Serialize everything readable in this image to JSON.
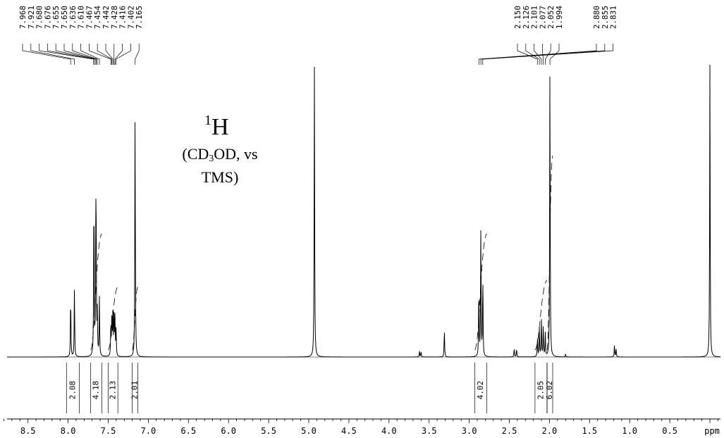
{
  "chart_data": {
    "type": "line",
    "title": "1H",
    "nucleus_superscript": "1",
    "nucleus_symbol": "H",
    "subtitle": "(CD3OD, vs TMS)",
    "subtitle_parts": [
      "(CD",
      "3",
      "OD, vs",
      "TMS)"
    ],
    "xlabel": "ppm",
    "xlim": [
      8.95,
      -0.3
    ],
    "x_direction": "reversed",
    "x_ticks": [
      "8.5",
      "8.0",
      "7.5",
      "7.0",
      "6.5",
      "6.0",
      "5.5",
      "5.0",
      "4.5",
      "4.0",
      "3.5",
      "3.0",
      "2.5",
      "2.0",
      "1.5",
      "1.0",
      "0.5"
    ],
    "x_tick_values": [
      8.5,
      8.0,
      7.5,
      7.0,
      6.5,
      6.0,
      5.5,
      5.0,
      4.5,
      4.0,
      3.5,
      3.0,
      2.5,
      2.0,
      1.5,
      1.0,
      0.5
    ],
    "y_units": "relative intensity",
    "peaks": [
      {
        "ppm": 7.968,
        "height": 0.22
      },
      {
        "ppm": 7.921,
        "height": 0.24
      },
      {
        "ppm": 7.68,
        "height": 0.31
      },
      {
        "ppm": 7.676,
        "height": 0.3
      },
      {
        "ppm": 7.655,
        "height": 0.41
      },
      {
        "ppm": 7.65,
        "height": 0.34
      },
      {
        "ppm": 7.636,
        "height": 0.14
      },
      {
        "ppm": 7.61,
        "height": 0.2
      },
      {
        "ppm": 7.467,
        "height": 0.12
      },
      {
        "ppm": 7.454,
        "height": 0.16
      },
      {
        "ppm": 7.442,
        "height": 0.14
      },
      {
        "ppm": 7.428,
        "height": 0.16
      },
      {
        "ppm": 7.416,
        "height": 0.13
      },
      {
        "ppm": 7.402,
        "height": 0.1
      },
      {
        "ppm": 7.165,
        "height": 0.88
      },
      {
        "ppm": 4.93,
        "height": 1.0
      },
      {
        "ppm": 3.62,
        "height": 0.02
      },
      {
        "ppm": 3.6,
        "height": 0.02
      },
      {
        "ppm": 3.31,
        "height": 0.1
      },
      {
        "ppm": 2.88,
        "height": 0.25
      },
      {
        "ppm": 2.855,
        "height": 0.45
      },
      {
        "ppm": 2.831,
        "height": 0.28
      },
      {
        "ppm": 2.44,
        "height": 0.03
      },
      {
        "ppm": 2.41,
        "height": 0.03
      },
      {
        "ppm": 2.15,
        "height": 0.07
      },
      {
        "ppm": 2.126,
        "height": 0.1
      },
      {
        "ppm": 2.101,
        "height": 0.13
      },
      {
        "ppm": 2.077,
        "height": 0.11
      },
      {
        "ppm": 2.052,
        "height": 0.08
      },
      {
        "ppm": 1.994,
        "height": 1.0
      },
      {
        "ppm": 1.8,
        "height": 0.01
      },
      {
        "ppm": 1.19,
        "height": 0.04
      },
      {
        "ppm": 1.17,
        "height": 0.03
      },
      {
        "ppm": 0.0,
        "height": 1.0
      }
    ],
    "peak_labels_left": [
      "7.968",
      "7.921",
      "7.680",
      "7.676",
      "7.655",
      "7.650",
      "7.636",
      "7.610",
      "7.467",
      "7.454",
      "7.442",
      "7.428",
      "7.416",
      "7.402",
      "7.165"
    ],
    "peak_labels_mid": [
      "2.880",
      "2.855",
      "2.831"
    ],
    "peak_labels_right": [
      "2.150",
      "2.126",
      "2.101",
      "2.077",
      "2.052",
      "1.994"
    ],
    "integrals": [
      {
        "from": 8.02,
        "to": 7.86,
        "value": "2.08",
        "rise": 0.0
      },
      {
        "from": 7.72,
        "to": 7.58,
        "value": "4.18",
        "rise": 0.55
      },
      {
        "from": 7.5,
        "to": 7.38,
        "value": "2.13",
        "rise": 0.3
      },
      {
        "from": 7.2,
        "to": 7.13,
        "value": "2.01",
        "rise": 0.3
      },
      {
        "from": 2.93,
        "to": 2.78,
        "value": "4.02",
        "rise": 0.55
      },
      {
        "from": 2.18,
        "to": 2.03,
        "value": "2.05",
        "rise": 0.33
      },
      {
        "from": 2.03,
        "to": 1.96,
        "value": "6.02",
        "rise": 0.92
      }
    ]
  }
}
